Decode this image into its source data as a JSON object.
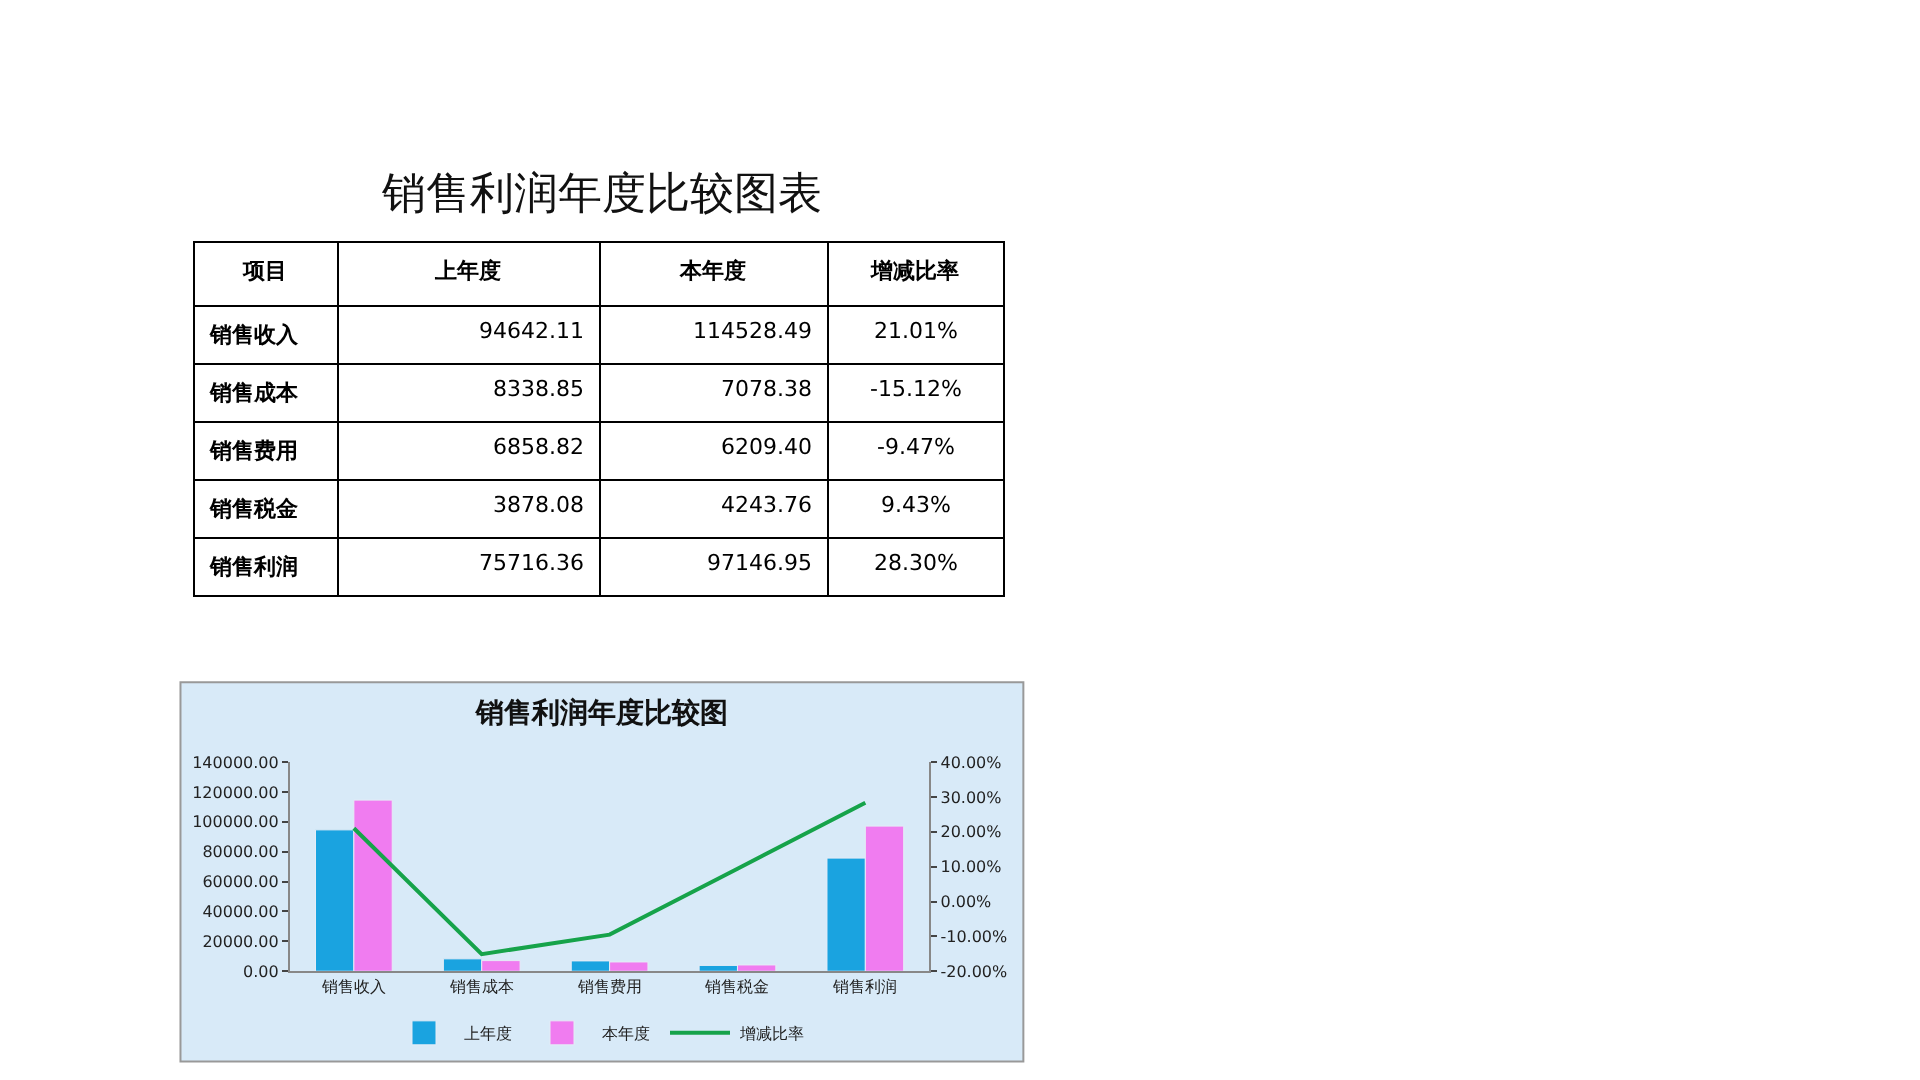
{
  "chart_data": [
    {
      "type": "other",
      "title": "销售利润年度比较图表",
      "annotations": [
        "项目"
      ],
      "categories": [
        "销售收入",
        "销售成本",
        "销售费用",
        "销售税金",
        "销售利润"
      ],
      "series": [
        {
          "name": "上年度",
          "values": [
            94642.11,
            8338.85,
            6858.82,
            3878.08,
            75716.36
          ],
          "value_labels": [
            "94642.11",
            "8338.85",
            "6858.82",
            "3878.08",
            "75716.36"
          ]
        },
        {
          "name": "本年度",
          "values": [
            114528.49,
            7078.38,
            6209.4,
            4243.76,
            97146.95
          ],
          "value_labels": [
            "114528.49",
            "7078.38",
            "6209.40",
            "4243.76",
            "97146.95"
          ]
        },
        {
          "name": "增减比率",
          "values": [
            21.01,
            -15.12,
            -9.47,
            9.43,
            28.3
          ],
          "value_labels": [
            "21.01%",
            "-15.12%",
            "-9.47%",
            "9.43%",
            "28.30%"
          ]
        }
      ]
    },
    {
      "type": "bar",
      "title": "销售利润年度比较图",
      "categories": [
        "销售收入",
        "销售成本",
        "销售费用",
        "销售税金",
        "销售利润"
      ],
      "series": [
        {
          "name": "上年度",
          "color": "#1aa3e0",
          "values": [
            94600,
            8300,
            6900,
            3900,
            75700
          ]
        },
        {
          "name": "本年度",
          "color": "#f07cf0",
          "values": [
            114500,
            7100,
            6200,
            4200,
            97100
          ]
        },
        {
          "name": "增减比率",
          "color": "#16a34a",
          "type": "line",
          "axis": "y2",
          "values": [
            21,
            -15.1,
            -9.5,
            9.4,
            28.3
          ]
        }
      ],
      "ylim": [
        0,
        140000
      ],
      "yticks": [
        {
          "value": 0,
          "label": "0.00"
        },
        {
          "value": 20000,
          "label": "20000.00"
        },
        {
          "value": 40000,
          "label": "40000.00"
        },
        {
          "value": 60000,
          "label": "60000.00"
        },
        {
          "value": 80000,
          "label": "80000.00"
        },
        {
          "value": 100000,
          "label": "100000.00"
        },
        {
          "value": 120000,
          "label": "120000.00"
        },
        {
          "value": 140000,
          "label": "140000.00"
        }
      ],
      "y2lim": [
        -20,
        40
      ],
      "y2ticks": [
        {
          "value": -20,
          "label": "-20.00%"
        },
        {
          "value": -10,
          "label": "-10.00%"
        },
        {
          "value": 0,
          "label": "0.00%"
        },
        {
          "value": 10,
          "label": "10.00%"
        },
        {
          "value": 20,
          "label": "20.00%"
        },
        {
          "value": 30,
          "label": "30.00%"
        },
        {
          "value": 40,
          "label": "40.00%"
        }
      ],
      "legend": "bottom",
      "grid": false,
      "marker": "none",
      "line_style": "solid"
    }
  ]
}
